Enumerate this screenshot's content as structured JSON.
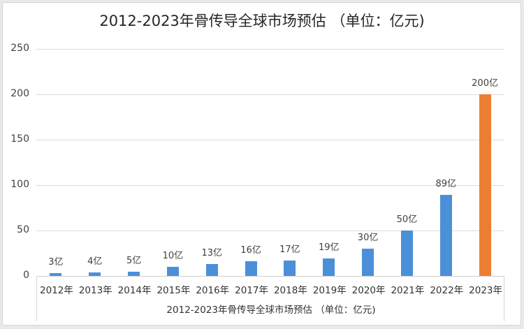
{
  "chart_data": {
    "type": "bar",
    "title": "2012-2023年骨传导全球市场预估 （单位：亿元)",
    "categories": [
      "2012年",
      "2013年",
      "2014年",
      "2015年",
      "2016年",
      "2017年",
      "2018年",
      "2019年",
      "2020年",
      "2021年",
      "2022年",
      "2023年"
    ],
    "values": [
      3,
      4,
      5,
      10,
      13,
      16,
      17,
      19,
      30,
      50,
      89,
      200
    ],
    "data_labels": [
      "3亿",
      "4亿",
      "5亿",
      "10亿",
      "13亿",
      "16亿",
      "17亿",
      "19亿",
      "30亿",
      "50亿",
      "89亿",
      "200亿"
    ],
    "bar_colors": [
      "#4a90d9",
      "#4a90d9",
      "#4a90d9",
      "#4a90d9",
      "#4a90d9",
      "#4a90d9",
      "#4a90d9",
      "#4a90d9",
      "#4a90d9",
      "#4a90d9",
      "#4a90d9",
      "#ed7d31"
    ],
    "xlabel": "2012-2023年骨传导全球市场预估 （单位：亿元)",
    "ylabel": "",
    "ylim": [
      0,
      250
    ],
    "yticks": [
      0,
      50,
      100,
      150,
      200,
      250
    ],
    "grid": true,
    "legend": "none"
  },
  "colors": {
    "bar": "#4a90d9",
    "highlight": "#ed7d31",
    "grid": "#dcdcdc"
  }
}
